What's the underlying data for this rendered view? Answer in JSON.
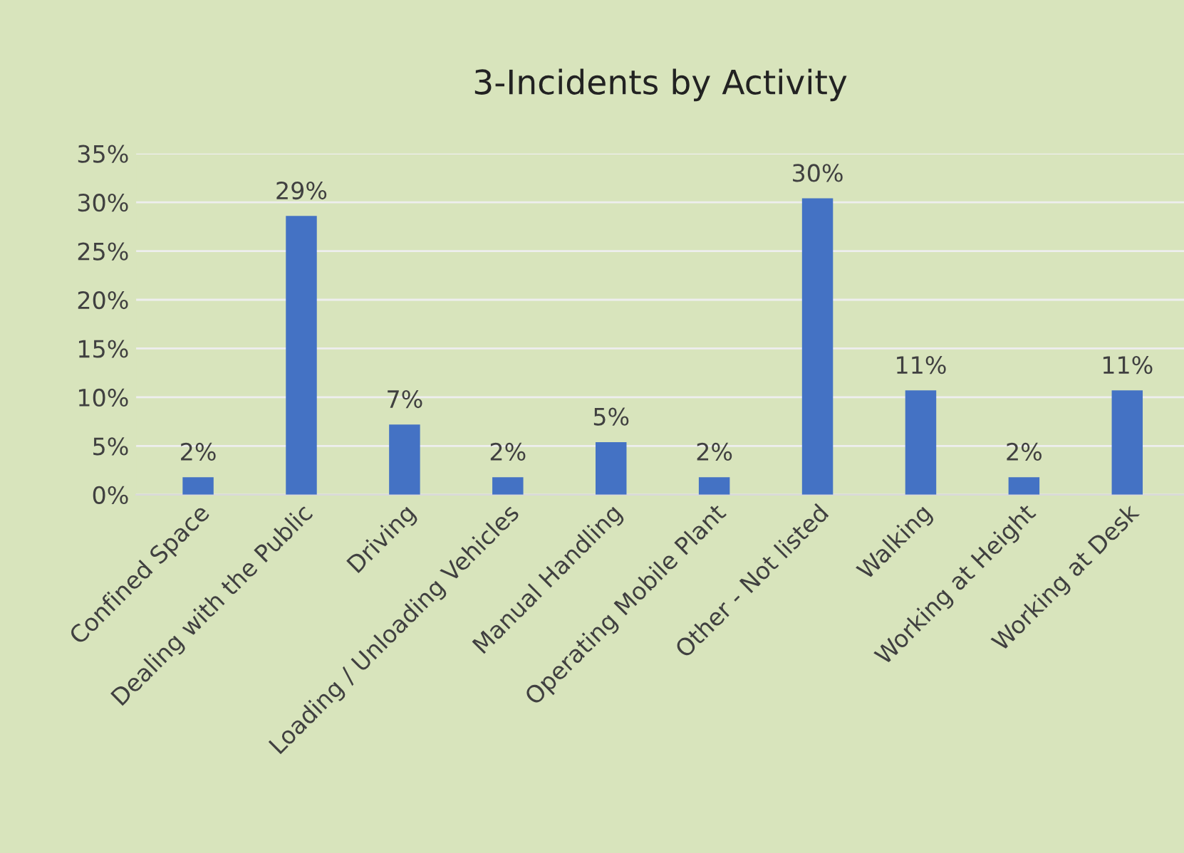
{
  "chart_data": {
    "type": "bar",
    "title": "3-Incidents by Activity",
    "categories": [
      "Confined Space",
      "Dealing with the Public",
      "Driving",
      "Loading / Unloading Vehicles",
      "Manual Handling",
      "Operating Mobile Plant",
      "Other - Not listed",
      "Walking",
      "Working at Height",
      "Working at Desk"
    ],
    "values": [
      1.8,
      28.6,
      7.2,
      1.8,
      5.4,
      1.8,
      30.4,
      10.7,
      1.8,
      10.7
    ],
    "value_labels": [
      "2%",
      "29%",
      "7%",
      "2%",
      "5%",
      "2%",
      "30%",
      "11%",
      "2%",
      "11%"
    ],
    "color": "#4472c4",
    "ylim": [
      0,
      35
    ],
    "yticks": [
      {
        "value": 0,
        "label": "0%"
      },
      {
        "value": 5,
        "label": "5%"
      },
      {
        "value": 10,
        "label": "10%"
      },
      {
        "value": 15,
        "label": "15%"
      },
      {
        "value": 20,
        "label": "20%"
      },
      {
        "value": 25,
        "label": "25%"
      },
      {
        "value": 30,
        "label": "30%"
      },
      {
        "value": 35,
        "label": "35%"
      }
    ],
    "grid": "y",
    "legend": false
  }
}
